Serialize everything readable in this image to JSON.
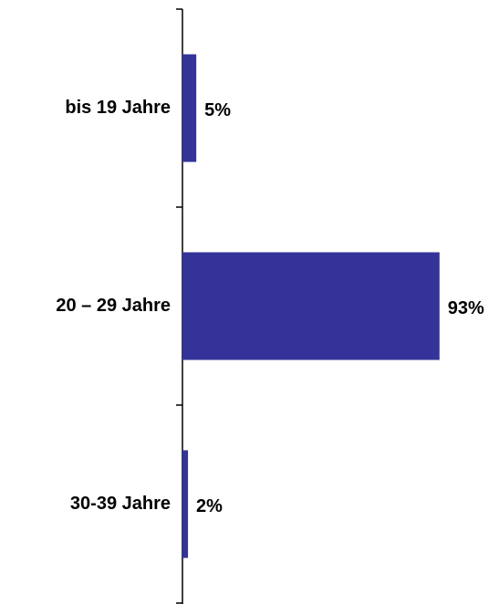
{
  "chart_data": {
    "type": "bar",
    "orientation": "horizontal",
    "categories": [
      "bis 19 Jahre",
      "20 – 29 Jahre",
      "30-39 Jahre"
    ],
    "values": [
      5,
      93,
      2
    ],
    "value_labels": [
      "5%",
      "93%",
      "2%"
    ],
    "color": "#333399"
  }
}
